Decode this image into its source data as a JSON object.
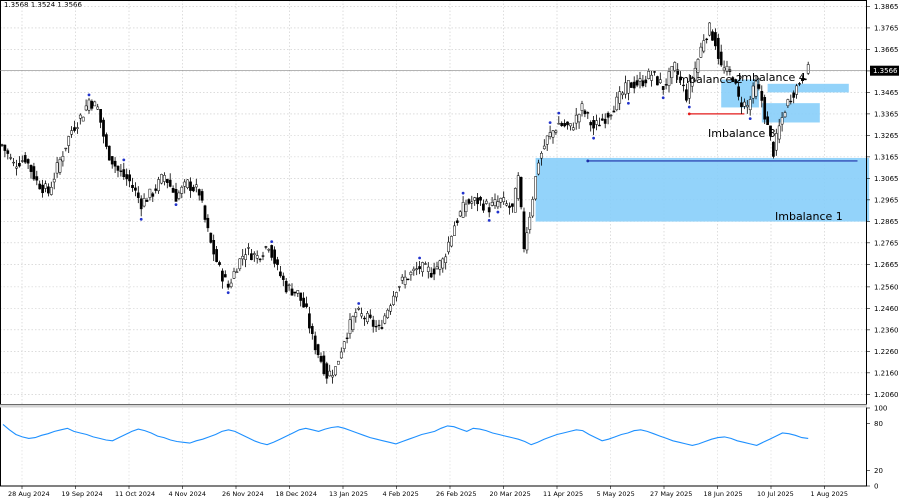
{
  "header": {
    "ohlc": "1.3568 1.3524 1.3566"
  },
  "chart_data": [
    {
      "type": "candlestick",
      "title": "",
      "price_axis": {
        "ylim": [
          1.2015,
          1.3895
        ],
        "ticks": [
          "1.3865",
          "1.3765",
          "1.3665",
          "1.3565",
          "1.3465",
          "1.3365",
          "1.3265",
          "1.3165",
          "1.3065",
          "1.2965",
          "1.2865",
          "1.2765",
          "1.2665",
          "1.2560",
          "1.2460",
          "1.2360",
          "1.2260",
          "1.2160",
          "1.2060"
        ],
        "current_price": "1.3566"
      },
      "time_axis": {
        "labels": [
          "28 Aug 2024",
          "19 Sep 2024",
          "11 Oct 2024",
          "4 Nov 2024",
          "26 Nov 2024",
          "18 Dec 2024",
          "13 Jan 2025",
          "4 Feb 2025",
          "26 Feb 2025",
          "20 Mar 2025",
          "11 Apr 2025",
          "5 May 2025",
          "27 May 2025",
          "18 Jun 2025",
          "10 Jul 2025",
          "1 Aug 2025"
        ]
      },
      "close_path": [
        [
          0,
          1.322
        ],
        [
          4,
          1.313
        ],
        [
          8,
          1.316
        ],
        [
          12,
          1.305
        ],
        [
          16,
          1.3
        ],
        [
          20,
          1.315
        ],
        [
          24,
          1.329
        ],
        [
          28,
          1.337
        ],
        [
          30,
          1.343
        ],
        [
          33,
          1.339
        ],
        [
          36,
          1.32
        ],
        [
          40,
          1.31
        ],
        [
          44,
          1.305
        ],
        [
          48,
          1.295
        ],
        [
          52,
          1.3
        ],
        [
          56,
          1.308
        ],
        [
          60,
          1.298
        ],
        [
          64,
          1.304
        ],
        [
          68,
          1.3
        ],
        [
          70,
          1.287
        ],
        [
          72,
          1.276
        ],
        [
          75,
          1.264
        ],
        [
          78,
          1.256
        ],
        [
          81,
          1.266
        ],
        [
          84,
          1.273
        ],
        [
          88,
          1.27
        ],
        [
          92,
          1.276
        ],
        [
          95,
          1.264
        ],
        [
          98,
          1.256
        ],
        [
          102,
          1.253
        ],
        [
          105,
          1.244
        ],
        [
          107,
          1.232
        ],
        [
          110,
          1.222
        ],
        [
          112,
          1.215
        ],
        [
          115,
          1.218
        ],
        [
          118,
          1.232
        ],
        [
          122,
          1.244
        ],
        [
          126,
          1.241
        ],
        [
          130,
          1.236
        ],
        [
          133,
          1.246
        ],
        [
          136,
          1.256
        ],
        [
          140,
          1.261
        ],
        [
          144,
          1.265
        ],
        [
          148,
          1.263
        ],
        [
          152,
          1.268
        ],
        [
          156,
          1.285
        ],
        [
          160,
          1.295
        ],
        [
          164,
          1.296
        ],
        [
          168,
          1.293
        ],
        [
          172,
          1.296
        ],
        [
          176,
          1.292
        ],
        [
          178,
          1.306
        ],
        [
          180,
          1.275
        ],
        [
          182,
          1.29
        ],
        [
          185,
          1.315
        ],
        [
          188,
          1.325
        ],
        [
          192,
          1.332
        ],
        [
          196,
          1.33
        ],
        [
          200,
          1.339
        ],
        [
          204,
          1.33
        ],
        [
          208,
          1.335
        ],
        [
          212,
          1.342
        ],
        [
          216,
          1.35
        ],
        [
          220,
          1.351
        ],
        [
          224,
          1.355
        ],
        [
          228,
          1.349
        ],
        [
          232,
          1.358
        ],
        [
          236,
          1.345
        ],
        [
          240,
          1.362
        ],
        [
          242,
          1.372
        ],
        [
          244,
          1.376
        ],
        [
          246,
          1.37
        ],
        [
          248,
          1.358
        ],
        [
          252,
          1.354
        ],
        [
          254,
          1.343
        ],
        [
          257,
          1.34
        ],
        [
          260,
          1.35
        ],
        [
          262,
          1.343
        ],
        [
          264,
          1.33
        ],
        [
          266,
          1.319
        ],
        [
          268,
          1.33
        ],
        [
          270,
          1.339
        ],
        [
          272,
          1.345
        ],
        [
          274,
          1.349
        ],
        [
          276,
          1.354
        ],
        [
          278,
          1.3566
        ]
      ],
      "zones": [
        {
          "name": "Imbalance 1",
          "from": 184,
          "to": 299,
          "price_top": 1.316,
          "price_bottom": 1.2864,
          "color": "#87cefa"
        },
        {
          "name": "Imbalance 2",
          "from": 248,
          "to": 261,
          "price_top": 1.3525,
          "price_bottom": 1.3395,
          "color": "#87cefa"
        },
        {
          "name": "Imbalance 3",
          "from": 262,
          "to": 282,
          "price_top": 1.3415,
          "price_bottom": 1.3325,
          "color": "#87cefa"
        },
        {
          "name": "Imbalance 4",
          "from": 264,
          "to": 292,
          "price_top": 1.3505,
          "price_bottom": 1.3465,
          "color": "#87cefa"
        }
      ],
      "levels": [
        {
          "price": 1.3365,
          "from": 237,
          "to": 256,
          "color": "#e31a1a"
        },
        {
          "price": 1.3146,
          "from": 202,
          "to": 295,
          "color": "#1c2ea8"
        }
      ]
    },
    {
      "type": "line",
      "title": "",
      "ylim": [
        0,
        100
      ],
      "ticks": [
        "100",
        "80",
        "20",
        "0"
      ],
      "values": [
        79,
        72,
        66,
        63,
        61,
        62,
        65,
        67,
        70,
        72,
        74,
        70,
        68,
        66,
        63,
        61,
        59,
        58,
        62,
        66,
        70,
        73,
        71,
        68,
        64,
        62,
        59,
        57,
        56,
        55,
        58,
        60,
        63,
        66,
        70,
        72,
        70,
        66,
        62,
        58,
        55,
        53,
        56,
        60,
        64,
        68,
        72,
        74,
        72,
        70,
        73,
        75,
        76,
        74,
        71,
        68,
        65,
        62,
        60,
        58,
        56,
        54,
        57,
        60,
        63,
        66,
        68,
        70,
        74,
        77,
        76,
        73,
        70,
        74,
        73,
        71,
        68,
        66,
        64,
        62,
        60,
        57,
        53,
        56,
        60,
        63,
        66,
        68,
        70,
        72,
        71,
        66,
        62,
        58,
        60,
        63,
        66,
        68,
        71,
        72,
        70,
        67,
        64,
        61,
        58,
        56,
        54,
        52,
        54,
        57,
        60,
        62,
        63,
        61,
        58,
        56,
        54,
        52,
        56,
        60,
        64,
        68,
        67,
        65,
        62,
        61
      ]
    }
  ]
}
